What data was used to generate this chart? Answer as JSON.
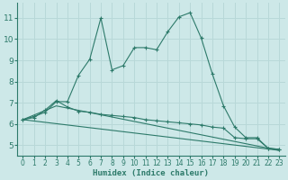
{
  "xlabel": "Humidex (Indice chaleur)",
  "bg_color": "#cde8e8",
  "grid_color": "#b8d8d8",
  "line_color": "#2d7a6a",
  "xlim": [
    -0.5,
    23.5
  ],
  "ylim": [
    4.5,
    11.7
  ],
  "yticks": [
    5,
    6,
    7,
    8,
    9,
    10,
    11
  ],
  "xticks": [
    0,
    1,
    2,
    3,
    4,
    5,
    6,
    7,
    8,
    9,
    10,
    11,
    12,
    13,
    14,
    15,
    16,
    17,
    18,
    19,
    20,
    21,
    22,
    23
  ],
  "line1_x": [
    0,
    1,
    2,
    3,
    4,
    5,
    6,
    7,
    8,
    9,
    10,
    11,
    12,
    13,
    14,
    15,
    16,
    17,
    18,
    19,
    20,
    21,
    22,
    23
  ],
  "line1_y": [
    6.2,
    6.35,
    6.55,
    7.05,
    7.05,
    8.3,
    9.05,
    11.0,
    8.55,
    8.75,
    9.6,
    9.6,
    9.5,
    10.35,
    11.05,
    11.25,
    10.05,
    8.35,
    6.85,
    5.85,
    5.35,
    5.35,
    4.85,
    4.8
  ],
  "line2_x": [
    0,
    1,
    2,
    3,
    4,
    5,
    6,
    7,
    8,
    9,
    10,
    11,
    12,
    13,
    14,
    15,
    16,
    17,
    18,
    19,
    20,
    21,
    22,
    23
  ],
  "line2_y": [
    6.2,
    6.3,
    6.65,
    7.1,
    6.8,
    6.6,
    6.55,
    6.45,
    6.4,
    6.35,
    6.3,
    6.2,
    6.15,
    6.1,
    6.05,
    6.0,
    5.95,
    5.85,
    5.8,
    5.35,
    5.3,
    5.3,
    4.85,
    4.8
  ],
  "line3_x": [
    0,
    23
  ],
  "line3_y": [
    6.2,
    4.75
  ],
  "line4_x": [
    0,
    3,
    23
  ],
  "line4_y": [
    6.2,
    6.85,
    4.75
  ]
}
